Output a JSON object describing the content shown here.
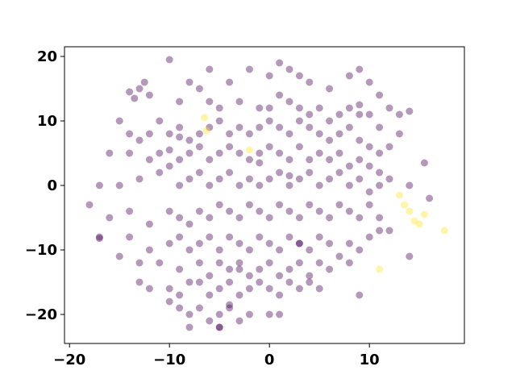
{
  "chart_data": {
    "type": "scatter",
    "title": "",
    "xlabel": "",
    "ylabel": "",
    "xlim": [
      -20.5,
      19.5
    ],
    "ylim": [
      -24.5,
      21.5
    ],
    "xticks": [
      -20,
      -10,
      0,
      10
    ],
    "yticks": [
      -20,
      -10,
      0,
      10,
      20
    ],
    "xtick_labels": [
      "−20",
      "−10",
      "0",
      "10"
    ],
    "ytick_labels": [
      "−20",
      "−10",
      "0",
      "10",
      "20"
    ],
    "grid": false,
    "legend": false,
    "colors": {
      "purple": "#440154",
      "yellow": "#fde725"
    },
    "marker_alpha": 0.4,
    "series": [
      {
        "color": "#440154",
        "points": [
          [
            -14,
            14.5
          ],
          [
            -13,
            15
          ],
          [
            -12.5,
            16
          ],
          [
            -12,
            14
          ],
          [
            -13.5,
            13.5
          ],
          [
            -11,
            10
          ],
          [
            -10,
            19.5
          ],
          [
            -8,
            16
          ],
          [
            -7,
            15
          ],
          [
            -9,
            13
          ],
          [
            -6,
            18
          ],
          [
            -4,
            16
          ],
          [
            -2,
            18
          ],
          [
            0,
            17
          ],
          [
            1,
            19
          ],
          [
            2,
            18
          ],
          [
            3,
            17
          ],
          [
            4,
            16
          ],
          [
            6,
            15
          ],
          [
            8,
            17
          ],
          [
            9,
            18
          ],
          [
            10,
            16
          ],
          [
            11,
            14
          ],
          [
            12,
            12
          ],
          [
            13,
            11
          ],
          [
            14,
            11.5
          ],
          [
            -6,
            13
          ],
          [
            -5,
            12
          ],
          [
            -3,
            13
          ],
          [
            -1,
            12
          ],
          [
            0,
            12
          ],
          [
            1,
            14
          ],
          [
            2,
            13
          ],
          [
            3,
            12
          ],
          [
            4,
            11
          ],
          [
            5,
            12
          ],
          [
            6,
            10
          ],
          [
            7,
            11
          ],
          [
            8,
            12
          ],
          [
            9,
            11
          ],
          [
            10,
            11
          ],
          [
            11,
            9
          ],
          [
            -15,
            10
          ],
          [
            -14,
            8
          ],
          [
            -13,
            7
          ],
          [
            -12,
            8
          ],
          [
            -10,
            8
          ],
          [
            -9,
            9
          ],
          [
            -8,
            7
          ],
          [
            -7,
            8
          ],
          [
            -6,
            9
          ],
          [
            -5,
            10
          ],
          [
            -4,
            8
          ],
          [
            -3,
            9
          ],
          [
            -2,
            8
          ],
          [
            -1,
            9
          ],
          [
            0,
            10
          ],
          [
            1,
            9
          ],
          [
            2,
            8
          ],
          [
            3,
            10
          ],
          [
            4,
            9
          ],
          [
            5,
            8
          ],
          [
            6,
            7
          ],
          [
            7,
            8
          ],
          [
            8,
            9
          ],
          [
            9,
            7
          ],
          [
            10,
            6
          ],
          [
            11,
            5
          ],
          [
            12,
            6
          ],
          [
            13,
            8
          ],
          [
            -16,
            5
          ],
          [
            -14,
            5
          ],
          [
            -12,
            4
          ],
          [
            -11,
            5
          ],
          [
            -10,
            3
          ],
          [
            -9,
            4
          ],
          [
            -8,
            5
          ],
          [
            -7,
            6
          ],
          [
            -6,
            4
          ],
          [
            -5,
            5
          ],
          [
            -4,
            6
          ],
          [
            -3,
            5
          ],
          [
            -2,
            4
          ],
          [
            -1,
            5
          ],
          [
            0,
            6
          ],
          [
            1,
            5
          ],
          [
            2,
            4
          ],
          [
            3,
            6
          ],
          [
            4,
            4
          ],
          [
            5,
            5
          ],
          [
            6,
            4
          ],
          [
            7,
            5
          ],
          [
            8,
            3
          ],
          [
            9,
            4
          ],
          [
            10,
            3
          ],
          [
            11,
            2
          ],
          [
            -17,
            0
          ],
          [
            -15,
            0
          ],
          [
            -13,
            1
          ],
          [
            -11,
            2
          ],
          [
            -9,
            0
          ],
          [
            -8,
            1
          ],
          [
            -7,
            2
          ],
          [
            -6,
            0
          ],
          [
            -5,
            1
          ],
          [
            -4,
            2
          ],
          [
            -3,
            0
          ],
          [
            -2,
            1
          ],
          [
            -1,
            0
          ],
          [
            0,
            1
          ],
          [
            1,
            2
          ],
          [
            2,
            0
          ],
          [
            3,
            1
          ],
          [
            4,
            2
          ],
          [
            5,
            0
          ],
          [
            6,
            1
          ],
          [
            7,
            2
          ],
          [
            8,
            0
          ],
          [
            9,
            1
          ],
          [
            10,
            -1
          ],
          [
            11,
            0
          ],
          [
            12,
            1
          ],
          [
            14,
            0
          ],
          [
            16,
            -2
          ],
          [
            -18,
            -3
          ],
          [
            -16,
            -5
          ],
          [
            -14,
            -4
          ],
          [
            -12,
            -6
          ],
          [
            -10,
            -4
          ],
          [
            -9,
            -5
          ],
          [
            -8,
            -6
          ],
          [
            -7,
            -4
          ],
          [
            -6,
            -5
          ],
          [
            -5,
            -3
          ],
          [
            -4,
            -4
          ],
          [
            -3,
            -5
          ],
          [
            -2,
            -3
          ],
          [
            -1,
            -4
          ],
          [
            0,
            -5
          ],
          [
            1,
            -3
          ],
          [
            2,
            -4
          ],
          [
            3,
            -5
          ],
          [
            4,
            -3
          ],
          [
            5,
            -4
          ],
          [
            6,
            -5
          ],
          [
            7,
            -3
          ],
          [
            8,
            -4
          ],
          [
            9,
            -5
          ],
          [
            10,
            -3
          ],
          [
            11,
            -5
          ],
          [
            12,
            -7
          ],
          [
            -17,
            -8
          ],
          [
            -14,
            -8
          ],
          [
            -12,
            -10
          ],
          [
            -10,
            -9
          ],
          [
            -9,
            -8
          ],
          [
            -8,
            -10
          ],
          [
            -7,
            -9
          ],
          [
            -6,
            -8
          ],
          [
            -5,
            -10
          ],
          [
            -4,
            -8
          ],
          [
            -3,
            -9
          ],
          [
            -2,
            -10
          ],
          [
            -1,
            -8
          ],
          [
            0,
            -9
          ],
          [
            1,
            -10
          ],
          [
            2,
            -8
          ],
          [
            3,
            -9
          ],
          [
            4,
            -10
          ],
          [
            5,
            -8
          ],
          [
            6,
            -9
          ],
          [
            7,
            -11
          ],
          [
            8,
            -9
          ],
          [
            9,
            -10
          ],
          [
            10,
            -8
          ],
          [
            11,
            -7
          ],
          [
            -15,
            -11
          ],
          [
            -13,
            -12
          ],
          [
            -11,
            -12
          ],
          [
            -9,
            -13
          ],
          [
            -7,
            -12
          ],
          [
            -6,
            -14
          ],
          [
            -5,
            -12
          ],
          [
            -4,
            -13
          ],
          [
            -3,
            -12
          ],
          [
            -2,
            -14
          ],
          [
            -1,
            -13
          ],
          [
            0,
            -12
          ],
          [
            1,
            -14
          ],
          [
            2,
            -13
          ],
          [
            3,
            -12
          ],
          [
            4,
            -14
          ],
          [
            5,
            -12
          ],
          [
            6,
            -13
          ],
          [
            8,
            -12
          ],
          [
            -13,
            -15
          ],
          [
            -12,
            -16
          ],
          [
            -10,
            -16
          ],
          [
            -9,
            -17
          ],
          [
            -8,
            -15
          ],
          [
            -6,
            -17
          ],
          [
            -5,
            -16
          ],
          [
            -4,
            -15
          ],
          [
            -3,
            -17
          ],
          [
            -2,
            -16
          ],
          [
            -1,
            -15
          ],
          [
            0,
            -16
          ],
          [
            1,
            -17
          ],
          [
            2,
            -15
          ],
          [
            3,
            -16
          ],
          [
            4,
            -15
          ],
          [
            5,
            -16
          ],
          [
            -10,
            -18
          ],
          [
            -9,
            -19
          ],
          [
            -8,
            -20
          ],
          [
            -7,
            -19
          ],
          [
            -6,
            -21
          ],
          [
            -5,
            -20
          ],
          [
            -4,
            -19
          ],
          [
            -3,
            -21
          ],
          [
            -2,
            -20
          ],
          [
            0,
            -20
          ],
          [
            1,
            -20
          ],
          [
            -8,
            -22
          ],
          [
            -5,
            -22
          ],
          [
            9,
            -17
          ],
          [
            14,
            -11
          ],
          [
            15.5,
            3.5
          ],
          [
            9,
            12.5
          ],
          [
            -10,
            5.5
          ],
          [
            -9,
            7.5
          ],
          [
            -17,
            -8.2
          ],
          [
            -7,
            -15
          ],
          [
            -3,
            -13
          ],
          [
            3,
            -9
          ],
          [
            -1,
            3.5
          ],
          [
            2,
            1.5
          ],
          [
            -4,
            -18.5
          ],
          [
            -5,
            -22
          ]
        ]
      },
      {
        "color": "#fde725",
        "points": [
          [
            -6.5,
            10.5
          ],
          [
            -6.3,
            8.5
          ],
          [
            -2,
            5.5
          ],
          [
            13,
            -1.5
          ],
          [
            13.5,
            -3
          ],
          [
            14,
            -4
          ],
          [
            15,
            -6
          ],
          [
            15.5,
            -4.5
          ],
          [
            17.5,
            -7
          ],
          [
            11,
            -13
          ],
          [
            14.5,
            -5.5
          ]
        ]
      }
    ]
  }
}
